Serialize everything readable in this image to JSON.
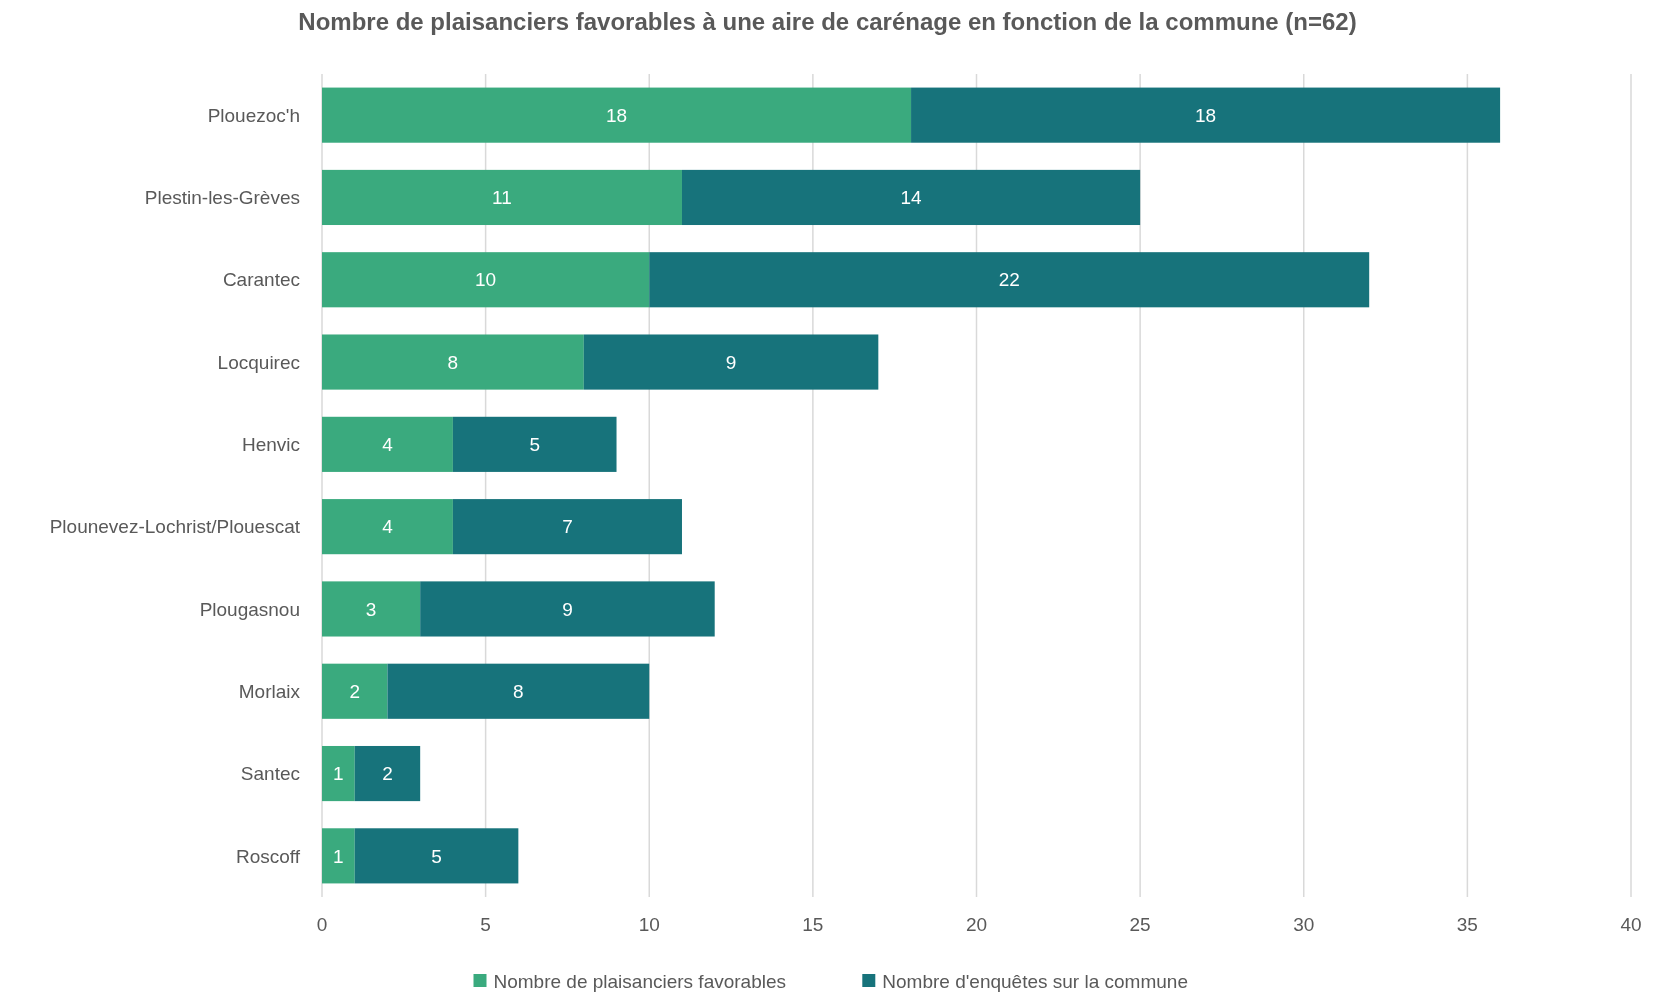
{
  "chart_data": {
    "type": "bar",
    "title": "Nombre de plaisanciers favorables à une aire de carénage en fonction de la commune (n=62)",
    "categories": [
      "Plouezoc'h",
      "Plestin-les-Grèves",
      "Carantec",
      "Locquirec",
      "Henvic",
      "Plounevez-Lochrist/Plouescat",
      "Plougasnou",
      "Morlaix",
      "Santec",
      "Roscoff"
    ],
    "series": [
      {
        "name": "Nombre de plaisanciers favorables",
        "color": "#3aaa7e",
        "values": [
          18,
          11,
          10,
          8,
          4,
          4,
          3,
          2,
          1,
          1
        ]
      },
      {
        "name": "Nombre d'enquêtes sur la commune",
        "color": "#17737b",
        "values": [
          18,
          14,
          22,
          9,
          5,
          7,
          9,
          8,
          2,
          5
        ]
      }
    ],
    "stacked": true,
    "orientation": "horizontal",
    "xlim": [
      0,
      40
    ],
    "xticks": [
      0,
      5,
      10,
      15,
      20,
      25,
      30,
      35,
      40
    ],
    "grid": "x",
    "legend": "bottom",
    "data_labels": true
  }
}
